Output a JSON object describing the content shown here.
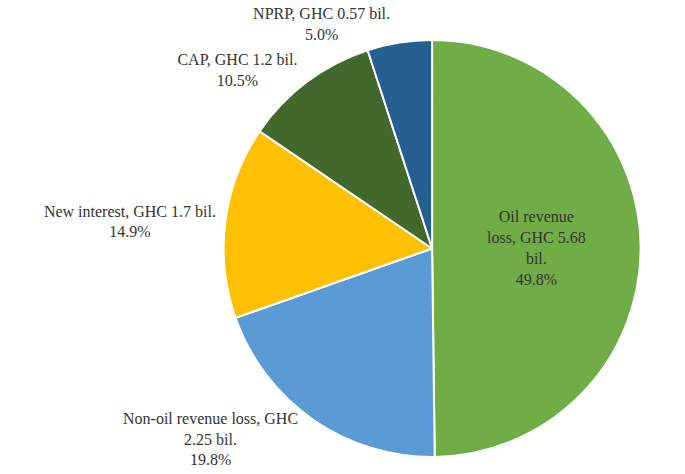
{
  "chart_data": {
    "type": "pie",
    "categories": [
      "Oil revenue loss, GHC 5.68 bil.",
      "Non-oil revenue loss, GHC 2.25 bil.",
      "New interest, GHC 1.7 bil.",
      "CAP, GHC 1.2 bil.",
      "NPRP, GHC 0.57 bil."
    ],
    "values": [
      49.8,
      19.8,
      14.9,
      10.5,
      5.0
    ],
    "value_labels": [
      "49.8%",
      "19.8%",
      "14.9%",
      "10.5%",
      "5.0%"
    ],
    "colors": [
      "#70ad47",
      "#5b9bd5",
      "#ffc000",
      "#43682b",
      "#255e91"
    ],
    "data_labels": true
  }
}
